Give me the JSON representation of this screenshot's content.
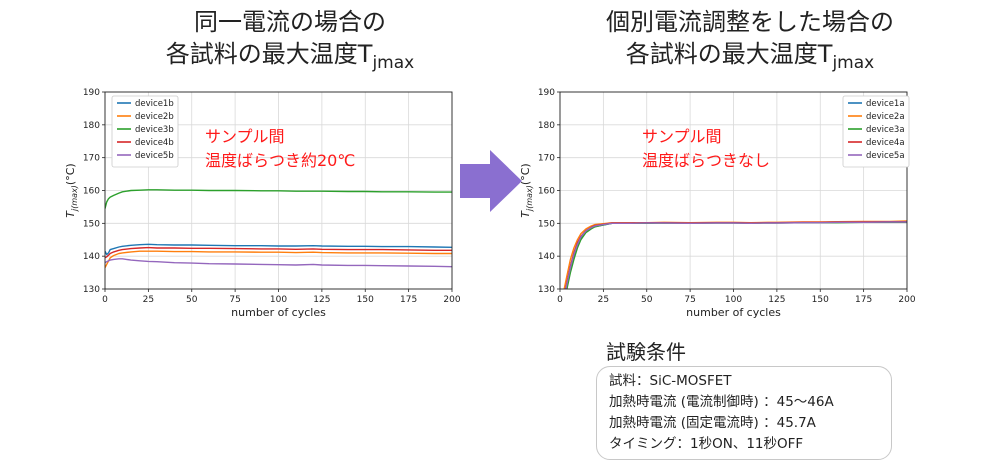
{
  "left_heading": {
    "line1": "同一電流の場合の",
    "line2_main": "各試料の最大温度T",
    "line2_sub": "jmax"
  },
  "right_heading": {
    "line1": "個別電流調整をした場合の",
    "line2_main": "各試料の最大温度T",
    "line2_sub": "jmax"
  },
  "arrow_color": "#8a6fd0",
  "conditions": {
    "title": "試験条件",
    "lines": [
      "試料：SiC-MOSFET",
      "加熱時電流 (電流制御時) ：45～46A",
      "加熱時電流 (固定電流時) ：45.7A",
      "タイミング：1秒ON、11秒OFF"
    ]
  },
  "chart_data": [
    {
      "type": "line",
      "xlabel": "number of cycles",
      "ylabel": "T_{j(max)}(°C)",
      "xlim": [
        0,
        200
      ],
      "ylim": [
        130,
        190
      ],
      "xticks": [
        0,
        25,
        50,
        75,
        100,
        125,
        150,
        175,
        200
      ],
      "yticks": [
        130,
        140,
        150,
        160,
        170,
        180,
        190
      ],
      "grid": true,
      "legend_position": "top-left",
      "annotation": [
        "サンプル間",
        "温度ばらつき約20℃"
      ],
      "x": [
        0,
        1,
        2,
        3,
        5,
        8,
        10,
        15,
        20,
        25,
        30,
        40,
        50,
        60,
        75,
        90,
        100,
        110,
        120,
        125,
        140,
        150,
        160,
        175,
        190,
        200
      ],
      "series": [
        {
          "name": "device1b",
          "color": "#1f77b4",
          "values": [
            141.5,
            140.5,
            141,
            142,
            142.3,
            142.8,
            143,
            143.3,
            143.5,
            143.6,
            143.5,
            143.4,
            143.4,
            143.3,
            143.2,
            143.2,
            143.1,
            143.1,
            143.2,
            143.1,
            143,
            143,
            142.9,
            142.9,
            142.8,
            142.7
          ]
        },
        {
          "name": "device2b",
          "color": "#ff7f0e",
          "values": [
            136.5,
            137.5,
            138.5,
            139.5,
            140.2,
            140.8,
            141,
            141.3,
            141.5,
            141.5,
            141.5,
            141.4,
            141.4,
            141.3,
            141.3,
            141.2,
            141.2,
            141.1,
            141.2,
            141.1,
            141,
            141,
            141,
            140.9,
            140.8,
            140.8
          ]
        },
        {
          "name": "device3b",
          "color": "#2ca02c",
          "values": [
            154.5,
            156.5,
            157.5,
            158,
            158.5,
            159.2,
            159.6,
            160,
            160.1,
            160.2,
            160.2,
            160.1,
            160.1,
            160,
            160,
            159.9,
            159.9,
            159.8,
            159.8,
            159.8,
            159.7,
            159.7,
            159.6,
            159.6,
            159.5,
            159.5
          ]
        },
        {
          "name": "device4b",
          "color": "#d62728",
          "values": [
            139.5,
            139.8,
            140.3,
            140.8,
            141.3,
            141.8,
            142,
            142.3,
            142.5,
            142.6,
            142.5,
            142.5,
            142.4,
            142.4,
            142.3,
            142.2,
            142.2,
            142.1,
            142.2,
            142.1,
            142,
            142,
            142,
            141.9,
            141.8,
            141.8
          ]
        },
        {
          "name": "device5b",
          "color": "#9467bd",
          "values": [
            138,
            138.3,
            138.6,
            138.8,
            139,
            139.2,
            139.2,
            138.8,
            138.6,
            138.4,
            138.3,
            138,
            137.9,
            137.7,
            137.6,
            137.5,
            137.4,
            137.3,
            137.5,
            137.3,
            137.2,
            137.2,
            137.1,
            137,
            136.9,
            136.8
          ]
        }
      ]
    },
    {
      "type": "line",
      "xlabel": "number of cycles",
      "ylabel": "T_{j(max)}(°C)",
      "xlim": [
        0,
        200
      ],
      "ylim": [
        130,
        190
      ],
      "xticks": [
        0,
        25,
        50,
        75,
        100,
        125,
        150,
        175,
        200
      ],
      "yticks": [
        130,
        140,
        150,
        160,
        170,
        180,
        190
      ],
      "grid": true,
      "legend_position": "top-right",
      "annotation": [
        "サンプル間",
        "温度ばらつきなし"
      ],
      "x": [
        0,
        2,
        4,
        6,
        8,
        10,
        12,
        15,
        18,
        20,
        25,
        30,
        40,
        50,
        60,
        75,
        90,
        100,
        110,
        120,
        125,
        140,
        150,
        160,
        175,
        190,
        200
      ],
      "series": [
        {
          "name": "device1a",
          "color": "#1f77b4",
          "values": [
            120,
            126,
            131,
            136,
            140,
            143,
            145.5,
            147.5,
            148.5,
            149,
            149.5,
            150,
            150.1,
            150.1,
            150.2,
            150.1,
            150.2,
            150.2,
            150.1,
            150.2,
            150.2,
            150.3,
            150.3,
            150.4,
            150.4,
            150.5,
            150.5
          ]
        },
        {
          "name": "device2a",
          "color": "#ff7f0e",
          "values": [
            123,
            129,
            134,
            139,
            142.5,
            145,
            146.8,
            148.3,
            149.2,
            149.6,
            149.9,
            150.2,
            150.2,
            150.2,
            150.3,
            150.2,
            150.3,
            150.3,
            150.2,
            150.3,
            150.3,
            150.4,
            150.4,
            150.5,
            150.6,
            150.6,
            150.7
          ]
        },
        {
          "name": "device3a",
          "color": "#2ca02c",
          "values": [
            119,
            125,
            130,
            135,
            139,
            142.5,
            145,
            147.2,
            148.3,
            148.9,
            149.5,
            150,
            150,
            150,
            150.1,
            150,
            150.1,
            150.1,
            150,
            150.1,
            150.1,
            150.2,
            150.2,
            150.2,
            150.3,
            150.3,
            150.3
          ]
        },
        {
          "name": "device4a",
          "color": "#d62728",
          "values": [
            121,
            127,
            132,
            137,
            141,
            144,
            146,
            147.8,
            148.8,
            149.3,
            149.7,
            150.1,
            150.1,
            150.2,
            150.2,
            150.1,
            150.2,
            150.2,
            150.1,
            150.2,
            150.2,
            150.3,
            150.3,
            150.4,
            150.4,
            150.5,
            150.5
          ]
        },
        {
          "name": "device5a",
          "color": "#9467bd",
          "values": [
            120.5,
            126.5,
            131.5,
            136.5,
            140.5,
            143.5,
            145.8,
            147.7,
            148.7,
            149.2,
            149.6,
            150,
            150,
            150.1,
            150.1,
            150,
            150.1,
            150.1,
            150,
            150.1,
            150.1,
            150.2,
            150.2,
            150.3,
            150.3,
            150.4,
            150.4
          ]
        }
      ]
    }
  ]
}
